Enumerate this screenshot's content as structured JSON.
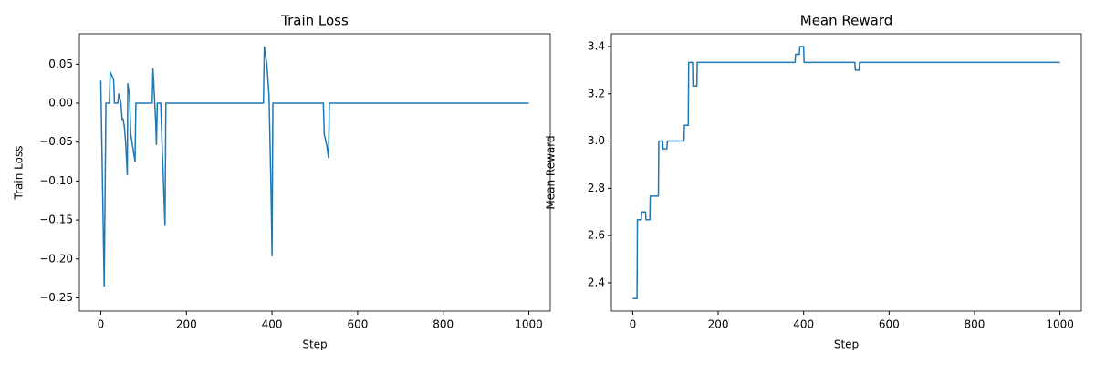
{
  "chart_data": [
    {
      "type": "line",
      "title": "Train Loss",
      "xlabel": "Step",
      "ylabel": "Train Loss",
      "color": "#1f77b4",
      "x": [
        0,
        8,
        12,
        20,
        22,
        30,
        32,
        40,
        42,
        47,
        50,
        52,
        55,
        58,
        62,
        63,
        67,
        70,
        80,
        82,
        120,
        122,
        128,
        130,
        132,
        140,
        142,
        150,
        152,
        380,
        382,
        388,
        393,
        398,
        400,
        402,
        520,
        522,
        528,
        532,
        534,
        1000
      ],
      "values": [
        0.029,
        -0.235,
        0,
        0,
        0.04,
        0.03,
        0,
        0,
        0.012,
        0,
        -0.022,
        -0.02,
        -0.03,
        -0.05,
        -0.092,
        0.025,
        0.01,
        -0.04,
        -0.075,
        0,
        0,
        0.044,
        -0.02,
        -0.053,
        0,
        0,
        -0.035,
        -0.157,
        0,
        0,
        0.072,
        0.05,
        0.01,
        -0.12,
        -0.196,
        0,
        0,
        -0.04,
        -0.055,
        -0.07,
        0,
        0
      ],
      "xlim": [
        -50,
        1050
      ],
      "ylim": [
        -0.267,
        0.089
      ],
      "xticks": [
        0,
        200,
        400,
        600,
        800,
        1000
      ],
      "yticks": [
        {
          "value": -0.25,
          "label": "−0.25"
        },
        {
          "value": -0.2,
          "label": "−0.20"
        },
        {
          "value": -0.15,
          "label": "−0.15"
        },
        {
          "value": -0.1,
          "label": "−0.10"
        },
        {
          "value": -0.05,
          "label": "−0.05"
        },
        {
          "value": 0,
          "label": "0.00"
        },
        {
          "value": 0.05,
          "label": "0.05"
        }
      ],
      "grid": false
    },
    {
      "type": "line",
      "title": "Mean Reward",
      "xlabel": "Step",
      "ylabel": "Mean Reward",
      "color": "#1f77b4",
      "x": [
        0,
        10,
        11,
        20,
        21,
        30,
        31,
        40,
        41,
        60,
        61,
        70,
        71,
        80,
        81,
        120,
        121,
        130,
        131,
        140,
        141,
        150,
        151,
        380,
        381,
        390,
        391,
        400,
        401,
        520,
        521,
        530,
        531,
        1000
      ],
      "values": [
        2.333,
        2.333,
        2.667,
        2.667,
        2.7,
        2.7,
        2.667,
        2.667,
        2.767,
        2.767,
        3.0,
        3.0,
        2.967,
        2.967,
        3.0,
        3.0,
        3.067,
        3.067,
        3.333,
        3.333,
        3.233,
        3.233,
        3.333,
        3.333,
        3.367,
        3.367,
        3.4,
        3.4,
        3.333,
        3.333,
        3.3,
        3.3,
        3.333,
        3.333
      ],
      "xlim": [
        -50,
        1050
      ],
      "ylim": [
        2.28,
        3.454
      ],
      "xticks": [
        0,
        200,
        400,
        600,
        800,
        1000
      ],
      "yticks": [
        2.4,
        2.6,
        2.8,
        {
          "value": 3,
          "label": "3.0"
        },
        3.2,
        3.4
      ],
      "grid": false
    }
  ]
}
